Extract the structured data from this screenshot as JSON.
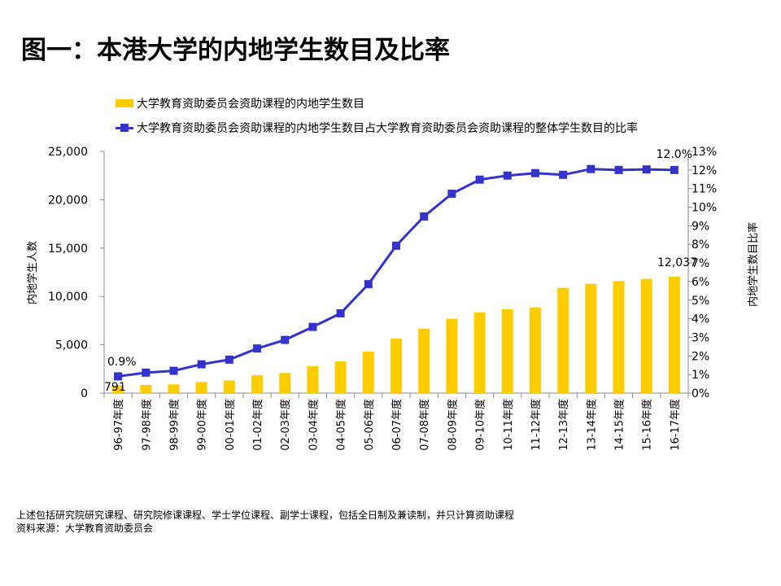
{
  "title": "图一：本港大学的内地学生数目及比率",
  "chart_data": {
    "type": "bar+line",
    "categories": [
      "96-97年度",
      "97-98年度",
      "98-99年度",
      "99-00年度",
      "00-01年度",
      "01-02年度",
      "02-03年度",
      "03-04年度",
      "04-05年度",
      "05-06年度",
      "06-07年度",
      "07-08年度",
      "08-09年度",
      "09-10年度",
      "10-11年度",
      "11-12年度",
      "12-13年度",
      "13-14年度",
      "14-15年度",
      "15-16年度",
      "16-17年度"
    ],
    "series": [
      {
        "name": "大学教育资助委员会资助课程的内地学生数目",
        "type": "bar",
        "axis": "left",
        "color": "#FFCC00",
        "values": [
          791,
          840,
          900,
          1150,
          1320,
          1850,
          2080,
          2780,
          3280,
          4290,
          5640,
          6650,
          7690,
          8360,
          8670,
          8860,
          10880,
          11300,
          11590,
          11810,
          12037
        ]
      },
      {
        "name": "大学教育资助委员会资助课程的内地学生数目占大学教育资助委员会资助课程的整体学生数目的比率",
        "type": "line",
        "axis": "right",
        "color": "#3333CC",
        "values": [
          0.9,
          1.1,
          1.2,
          1.55,
          1.8,
          2.4,
          2.86,
          3.56,
          4.29,
          5.86,
          7.93,
          9.5,
          10.72,
          11.48,
          11.7,
          11.83,
          11.74,
          12.05,
          12.0,
          12.03,
          12.0
        ]
      }
    ],
    "data_labels": {
      "bar_first": "791",
      "bar_last": "12,037",
      "line_first": "0.9%",
      "line_last": "12.0%"
    },
    "ylabel_left": "内地学生人数",
    "ylabel_right": "内地学生数目比率",
    "ylim_left": [
      0,
      25000
    ],
    "ylim_right": [
      0,
      13
    ],
    "yticks_left": [
      "0",
      "5,000",
      "10,000",
      "15,000",
      "20,000",
      "25,000"
    ],
    "yticks_right": [
      "0%",
      "1%",
      "2%",
      "3%",
      "4%",
      "5%",
      "6%",
      "7%",
      "8%",
      "9%",
      "10%",
      "11%",
      "12%",
      "13%"
    ],
    "grid": false,
    "legend_position": "top"
  },
  "notes": [
    "上述包括研究院研究课程、研究院修课课程、学士学位课程、副学士课程，包括全日制及兼读制，并只计算资助课程",
    "资料来源：大学教育资助委员会"
  ]
}
